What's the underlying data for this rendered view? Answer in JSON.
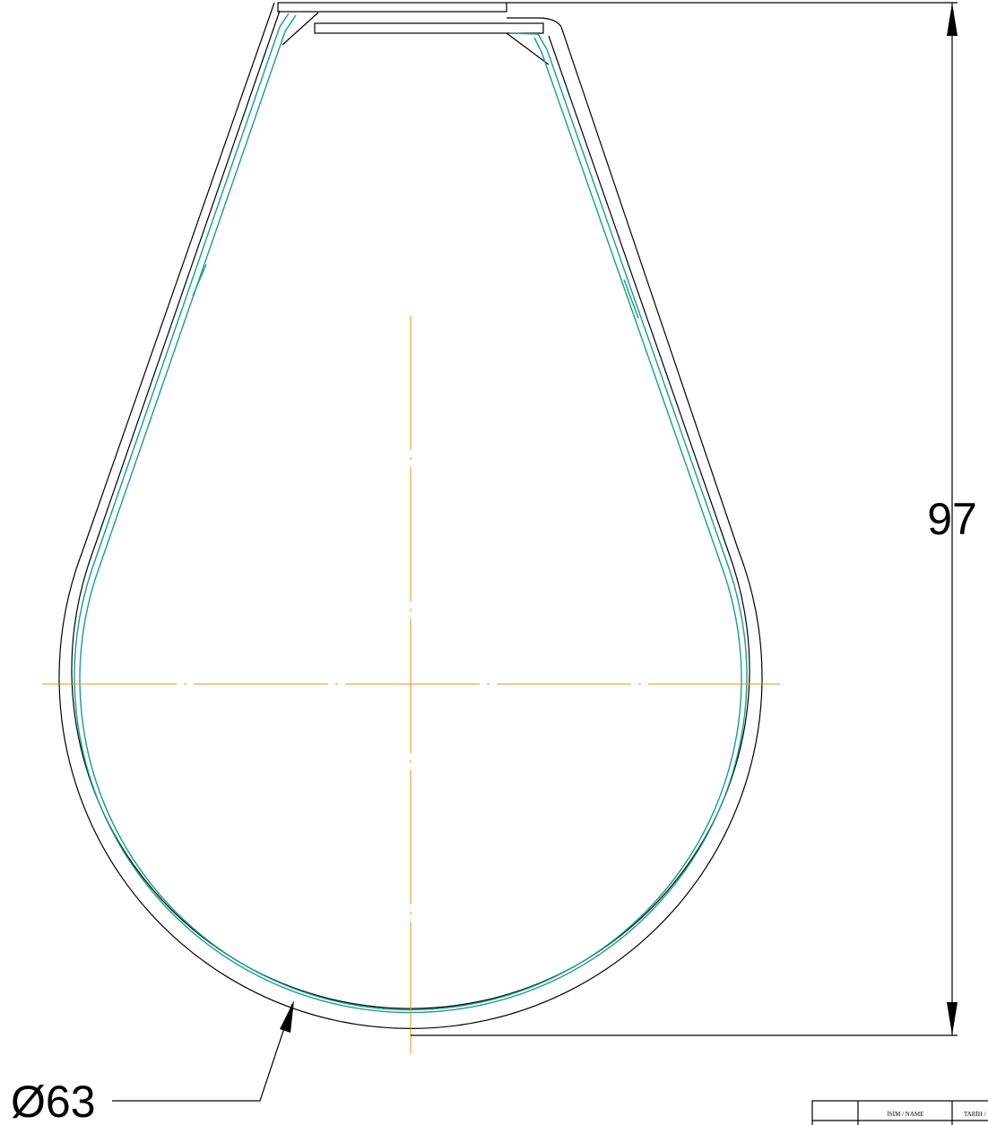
{
  "dimensions": {
    "height": "97",
    "diameter": "Ø63"
  },
  "title_block": {
    "name_header": "İSİM / NAME",
    "date_header": "TARİH /"
  }
}
